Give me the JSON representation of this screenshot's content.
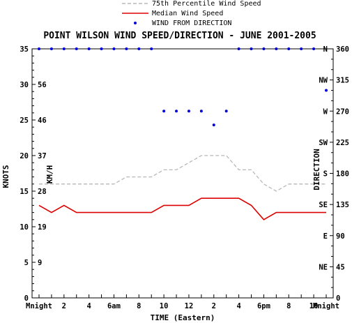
{
  "chart_data": {
    "type": "line",
    "title": "POINT WILSON WIND SPEED/DIRECTION - JUNE 2001-2005",
    "xlabel": "TIME (Eastern)",
    "ylabel_left": "KNOTS",
    "ylabel_inner": "KM/H",
    "ylabel_right": "DIRECTION",
    "xlim": [
      0,
      23
    ],
    "ylim": [
      0,
      35
    ],
    "y_ticks_knots": [
      "0",
      "5",
      "10",
      "15",
      "20",
      "25",
      "30",
      "35"
    ],
    "y_ticks_kmh": [
      {
        "label": "9",
        "knots": 5
      },
      {
        "label": "19",
        "knots": 10
      },
      {
        "label": "28",
        "knots": 15
      },
      {
        "label": "37",
        "knots": 20
      },
      {
        "label": "46",
        "knots": 25
      },
      {
        "label": "56",
        "knots": 30
      }
    ],
    "x_tick_labels": [
      {
        "label": "Mnight",
        "hour": 0
      },
      {
        "label": "2",
        "hour": 2
      },
      {
        "label": "4",
        "hour": 4
      },
      {
        "label": "6am",
        "hour": 6
      },
      {
        "label": "8",
        "hour": 8
      },
      {
        "label": "10",
        "hour": 10
      },
      {
        "label": "12",
        "hour": 12
      },
      {
        "label": "2",
        "hour": 14
      },
      {
        "label": "4",
        "hour": 16
      },
      {
        "label": "6pm",
        "hour": 18
      },
      {
        "label": "8",
        "hour": 20
      },
      {
        "label": "10",
        "hour": 22
      },
      {
        "label": "Mnight",
        "hour": 23
      }
    ],
    "direction_ticks": [
      {
        "deg": "360",
        "compass": "N"
      },
      {
        "deg": "315",
        "compass": "NW"
      },
      {
        "deg": "270",
        "compass": "W"
      },
      {
        "deg": "225",
        "compass": "SW"
      },
      {
        "deg": "180",
        "compass": "S"
      },
      {
        "deg": "135",
        "compass": "SE"
      },
      {
        "deg": "90",
        "compass": "E"
      },
      {
        "deg": "45",
        "compass": "NE"
      }
    ],
    "direction_range": [
      0,
      360
    ],
    "legend": {
      "placement": "top-center",
      "entries": [
        {
          "label": "75th Percentile Wind Speed",
          "color": "#b8b8b8",
          "style": "dashed"
        },
        {
          "label": "Median Wind Speed",
          "color": "#dd0000",
          "style": "solid"
        },
        {
          "label": "WIND FROM DIRECTION",
          "color": "#0000dd",
          "style": "dot"
        }
      ]
    },
    "x": [
      0,
      1,
      2,
      3,
      4,
      5,
      6,
      7,
      8,
      9,
      10,
      11,
      12,
      13,
      14,
      15,
      16,
      17,
      18,
      19,
      20,
      21,
      22,
      23
    ],
    "series": [
      {
        "name": "75th Percentile Wind Speed",
        "values": [
          16,
          16,
          16,
          16,
          16,
          16,
          16,
          17,
          17,
          17,
          18,
          18,
          19,
          20,
          20,
          20,
          18,
          18,
          16,
          15,
          16,
          16,
          16,
          16
        ]
      },
      {
        "name": "Median Wind Speed",
        "values": [
          13,
          12,
          13,
          12,
          12,
          12,
          12,
          12,
          12,
          12,
          13,
          13,
          13,
          14,
          14,
          14,
          14,
          13,
          11,
          12,
          12,
          12,
          12,
          12
        ]
      },
      {
        "name": "WIND FROM DIRECTION",
        "axis": "direction",
        "values": [
          360,
          360,
          360,
          360,
          360,
          360,
          360,
          360,
          360,
          360,
          270,
          270,
          270,
          270,
          250,
          270,
          360,
          360,
          360,
          360,
          360,
          360,
          360,
          300
        ]
      }
    ]
  }
}
